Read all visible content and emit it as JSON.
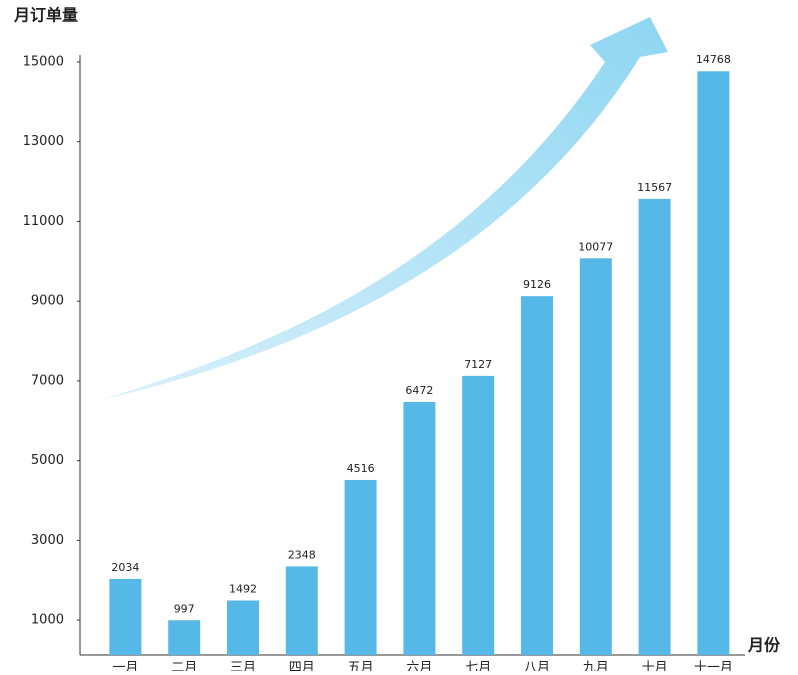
{
  "chart_data": {
    "type": "bar",
    "y_title": "月订单量",
    "x_title": "月份",
    "categories": [
      "一月",
      "二月",
      "三月",
      "四月",
      "五月",
      "六月",
      "七月",
      "八月",
      "九月",
      "十月",
      "十一月"
    ],
    "values": [
      2034,
      997,
      1492,
      2348,
      4516,
      6472,
      7127,
      9126,
      10077,
      11567,
      14768
    ],
    "color": "#56b8e6",
    "ylim": [
      0,
      15000
    ],
    "yticks": [
      1000,
      3000,
      5000,
      7000,
      9000,
      11000,
      13000,
      15000
    ],
    "grid": false
  }
}
